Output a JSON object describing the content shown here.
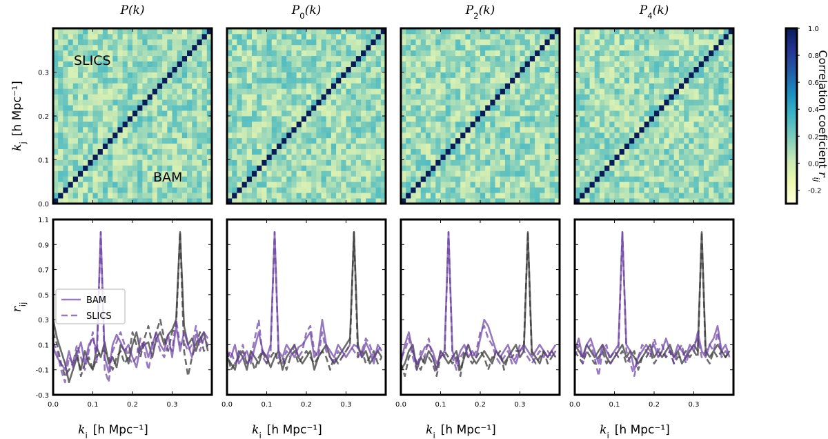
{
  "chart_data": {
    "type": "heatmap",
    "panel_titles": [
      {
        "main": "P",
        "sub": "",
        "suffix": "(k)"
      },
      {
        "main": "P",
        "sub": "0",
        "suffix": "(k)"
      },
      {
        "main": "P",
        "sub": "2",
        "suffix": "(k)"
      },
      {
        "main": "P",
        "sub": "4",
        "suffix": "(k)"
      }
    ],
    "heatmap": {
      "n_bins": 32,
      "k_range": [
        0.0,
        0.4
      ],
      "ylabel": {
        "var": "k",
        "sub": "j",
        "unit": "[h Mpc⁻¹]"
      },
      "y_ticks": [
        0.0,
        0.1,
        0.2,
        0.3
      ],
      "region_labels": {
        "upper": "SLICS",
        "lower": "BAM"
      },
      "diagonal_value": 1.0,
      "offdiag_mean": 0.12,
      "offdiag_spread": 0.1,
      "colormap": [
        "#ffffd9",
        "#edf8b1",
        "#c7e9b4",
        "#7fcdbb",
        "#41b6c4",
        "#1d91c0",
        "#225ea8",
        "#253494",
        "#081d58"
      ],
      "colorbar": {
        "range": [
          -0.3,
          1.0
        ],
        "ticks": [
          -0.2,
          0.0,
          0.2,
          0.4,
          0.6,
          0.8,
          1.0
        ],
        "label": "Correlation coeficient r",
        "label_sub": "ij"
      }
    },
    "lines": {
      "xlabel": {
        "var": "k",
        "sub": "i",
        "unit": "[h Mpc⁻¹]"
      },
      "ylabel": {
        "var": "r",
        "sub": "ij"
      },
      "x_ticks": [
        0.0,
        0.1,
        0.2,
        0.3
      ],
      "y_ticks": [
        -0.3,
        -0.1,
        0.1,
        0.3,
        0.5,
        0.7,
        0.9,
        1.1
      ],
      "xlim": [
        0.0,
        0.4
      ],
      "ylim": [
        -0.3,
        1.1
      ],
      "x": [
        0.0,
        0.01,
        0.02,
        0.03,
        0.04,
        0.05,
        0.06,
        0.07,
        0.08,
        0.09,
        0.1,
        0.11,
        0.12,
        0.13,
        0.14,
        0.15,
        0.16,
        0.17,
        0.18,
        0.19,
        0.2,
        0.21,
        0.22,
        0.23,
        0.24,
        0.25,
        0.26,
        0.27,
        0.28,
        0.29,
        0.3,
        0.31,
        0.32,
        0.33,
        0.34,
        0.35,
        0.36,
        0.37,
        0.38,
        0.39
      ],
      "legend": {
        "placement": "center-left",
        "entries": [
          "BAM",
          "SLICS"
        ]
      },
      "peak_purple_k": 0.12,
      "peak_gray_k": 0.32,
      "panels": [
        {
          "purple_bam": [
            0.08,
            0.0,
            -0.05,
            -0.1,
            0.05,
            -0.08,
            0.02,
            0.12,
            -0.05,
            0.1,
            0.15,
            0.05,
            1.0,
            0.0,
            -0.12,
            0.1,
            0.18,
            0.12,
            0.05,
            0.1,
            0.0,
            -0.08,
            0.08,
            0.12,
            0.0,
            0.1,
            0.2,
            0.1,
            0.05,
            0.18,
            0.0,
            0.25,
            0.05,
            0.2,
            0.1,
            0.0,
            0.18,
            0.12,
            0.2,
            0.15
          ],
          "purple_slics": [
            0.12,
            0.05,
            -0.1,
            -0.2,
            0.0,
            -0.05,
            0.1,
            0.0,
            -0.1,
            0.05,
            0.2,
            -0.05,
            1.0,
            -0.1,
            -0.2,
            0.05,
            0.12,
            0.2,
            0.1,
            0.0,
            -0.05,
            0.0,
            0.15,
            0.05,
            -0.1,
            0.05,
            0.15,
            0.05,
            0.0,
            0.1,
            0.05,
            0.3,
            0.1,
            0.12,
            0.05,
            0.1,
            0.25,
            0.05,
            0.15,
            0.1
          ],
          "gray_bam": [
            0.3,
            0.15,
            0.05,
            -0.05,
            -0.2,
            -0.1,
            0.0,
            -0.1,
            0.05,
            -0.05,
            -0.1,
            0.08,
            0.0,
            0.12,
            -0.05,
            0.0,
            -0.08,
            0.1,
            0.05,
            -0.05,
            0.1,
            0.2,
            0.05,
            0.1,
            0.12,
            0.0,
            0.15,
            0.2,
            0.1,
            0.18,
            0.22,
            0.3,
            1.0,
            0.25,
            0.1,
            0.15,
            0.05,
            0.15,
            0.2,
            0.05
          ],
          "gray_slics": [
            0.2,
            0.1,
            -0.05,
            -0.15,
            -0.1,
            -0.05,
            0.05,
            -0.15,
            -0.05,
            0.0,
            -0.1,
            0.0,
            0.05,
            0.05,
            0.0,
            -0.1,
            0.0,
            0.05,
            -0.05,
            0.0,
            0.2,
            0.1,
            0.0,
            0.15,
            0.25,
            0.1,
            0.2,
            0.3,
            0.15,
            0.05,
            0.2,
            0.25,
            1.0,
            0.05,
            -0.15,
            0.0,
            0.1,
            0.2,
            0.05,
            0.1
          ]
        },
        {
          "purple_bam": [
            0.05,
            0.0,
            0.1,
            -0.05,
            0.0,
            0.05,
            -0.05,
            0.08,
            0.2,
            0.05,
            0.0,
            0.1,
            1.0,
            0.05,
            0.0,
            0.1,
            0.05,
            0.0,
            0.08,
            0.1,
            0.15,
            0.2,
            0.0,
            0.05,
            0.3,
            0.1,
            0.05,
            0.0,
            0.1,
            0.05,
            0.0,
            0.05,
            0.1,
            0.08,
            0.0,
            0.12,
            0.05,
            -0.05,
            0.1,
            0.05
          ],
          "purple_slics": [
            0.0,
            0.05,
            -0.05,
            0.0,
            0.1,
            -0.05,
            0.0,
            0.15,
            0.3,
            0.0,
            -0.05,
            0.05,
            1.0,
            0.0,
            -0.05,
            0.05,
            0.0,
            0.1,
            0.0,
            0.05,
            0.2,
            0.25,
            0.05,
            0.0,
            0.2,
            0.05,
            0.0,
            -0.05,
            0.05,
            0.0,
            0.05,
            0.1,
            0.05,
            0.0,
            0.05,
            0.15,
            0.1,
            0.0,
            0.05,
            0.1
          ],
          "gray_bam": [
            0.0,
            -0.05,
            -0.1,
            0.05,
            0.0,
            -0.1,
            0.05,
            0.0,
            -0.05,
            0.05,
            0.0,
            -0.08,
            0.0,
            0.05,
            -0.1,
            0.0,
            0.05,
            0.1,
            0.0,
            -0.05,
            0.0,
            0.05,
            -0.1,
            0.0,
            0.05,
            0.1,
            0.0,
            -0.05,
            0.0,
            0.05,
            0.1,
            0.15,
            1.0,
            0.1,
            0.0,
            0.05,
            -0.05,
            0.0,
            0.05,
            0.0
          ],
          "gray_slics": [
            0.05,
            -0.1,
            -0.05,
            0.0,
            0.05,
            -0.05,
            0.0,
            -0.1,
            0.0,
            0.05,
            -0.05,
            0.0,
            0.05,
            -0.05,
            0.0,
            -0.1,
            0.0,
            0.05,
            -0.05,
            0.0,
            0.05,
            0.0,
            -0.05,
            0.0,
            0.05,
            0.0,
            -0.1,
            0.0,
            -0.05,
            0.0,
            0.05,
            0.1,
            1.0,
            0.0,
            0.05,
            -0.05,
            0.0,
            0.05,
            -0.05,
            0.0
          ]
        },
        {
          "purple_bam": [
            -0.05,
            0.1,
            0.2,
            0.05,
            -0.05,
            0.0,
            0.08,
            0.1,
            0.05,
            -0.05,
            0.0,
            0.05,
            1.0,
            0.05,
            -0.05,
            0.05,
            0.1,
            0.0,
            0.05,
            0.0,
            0.15,
            0.3,
            0.25,
            0.15,
            0.05,
            0.0,
            0.05,
            0.1,
            0.0,
            -0.05,
            0.05,
            0.1,
            0.05,
            0.0,
            0.05,
            0.1,
            0.05,
            0.0,
            0.05,
            0.1
          ],
          "purple_slics": [
            0.0,
            0.05,
            0.15,
            0.0,
            -0.1,
            0.05,
            0.0,
            0.15,
            0.0,
            -0.1,
            0.05,
            0.0,
            1.0,
            0.0,
            -0.1,
            0.0,
            0.05,
            0.1,
            0.0,
            0.05,
            0.2,
            0.25,
            0.15,
            0.1,
            0.0,
            -0.05,
            0.0,
            0.05,
            -0.05,
            0.0,
            0.1,
            0.05,
            0.0,
            -0.05,
            0.0,
            0.05,
            0.0,
            0.05,
            0.0,
            0.05
          ],
          "gray_bam": [
            -0.1,
            -0.05,
            0.05,
            0.1,
            -0.1,
            0.0,
            -0.05,
            0.05,
            0.0,
            -0.1,
            0.05,
            0.0,
            -0.05,
            0.0,
            0.05,
            -0.1,
            0.0,
            0.1,
            0.0,
            -0.05,
            0.0,
            0.05,
            0.0,
            -0.05,
            0.05,
            0.0,
            -0.05,
            0.0,
            0.05,
            0.1,
            0.0,
            0.05,
            1.0,
            0.05,
            0.0,
            -0.05,
            0.05,
            0.0,
            0.05,
            0.0
          ],
          "gray_slics": [
            -0.05,
            -0.15,
            0.0,
            0.05,
            -0.05,
            -0.1,
            0.0,
            0.0,
            -0.05,
            -0.15,
            0.0,
            0.05,
            0.0,
            -0.05,
            0.0,
            -0.15,
            0.05,
            0.0,
            -0.05,
            0.0,
            0.05,
            0.0,
            -0.1,
            0.0,
            0.0,
            0.05,
            -0.1,
            0.0,
            0.0,
            0.05,
            0.05,
            0.1,
            1.0,
            0.0,
            -0.05,
            0.0,
            0.05,
            -0.05,
            0.0,
            0.05
          ]
        },
        {
          "purple_bam": [
            0.05,
            0.15,
            0.0,
            0.1,
            0.15,
            0.05,
            -0.05,
            0.1,
            0.05,
            0.0,
            0.05,
            0.1,
            1.0,
            0.1,
            0.05,
            -0.1,
            0.0,
            0.05,
            0.1,
            0.05,
            0.1,
            0.0,
            0.05,
            0.15,
            0.05,
            0.0,
            0.1,
            0.05,
            0.0,
            0.1,
            0.05,
            0.2,
            0.05,
            0.0,
            0.1,
            0.15,
            0.25,
            0.05,
            0.1,
            0.0
          ],
          "purple_slics": [
            0.0,
            0.1,
            -0.05,
            0.05,
            0.1,
            0.0,
            -0.15,
            0.05,
            0.1,
            -0.05,
            0.0,
            0.05,
            1.0,
            0.05,
            -0.05,
            -0.15,
            0.0,
            0.1,
            0.05,
            0.0,
            0.15,
            0.05,
            0.1,
            0.0,
            0.05,
            -0.05,
            0.05,
            0.1,
            -0.05,
            0.05,
            0.1,
            0.15,
            0.0,
            0.05,
            0.1,
            0.05,
            0.2,
            0.0,
            0.05,
            0.0
          ],
          "gray_bam": [
            0.1,
            0.05,
            0.0,
            0.1,
            0.05,
            0.0,
            0.05,
            0.1,
            0.0,
            -0.05,
            0.0,
            0.05,
            0.1,
            0.0,
            0.05,
            0.0,
            -0.05,
            0.0,
            0.05,
            0.1,
            0.0,
            0.05,
            0.0,
            0.05,
            0.1,
            0.0,
            0.05,
            -0.05,
            0.0,
            0.05,
            0.1,
            0.05,
            1.0,
            0.05,
            0.0,
            0.05,
            0.1,
            0.05,
            0.0,
            0.05
          ],
          "gray_slics": [
            0.05,
            0.0,
            -0.05,
            0.05,
            0.0,
            -0.05,
            0.0,
            0.05,
            -0.05,
            0.0,
            0.05,
            0.0,
            0.05,
            -0.05,
            0.0,
            0.05,
            -0.1,
            0.0,
            0.0,
            0.05,
            -0.05,
            0.0,
            0.05,
            0.0,
            0.05,
            -0.05,
            0.0,
            0.0,
            0.05,
            0.0,
            0.05,
            0.0,
            1.0,
            0.0,
            -0.05,
            0.05,
            0.0,
            0.05,
            0.0,
            0.05
          ]
        }
      ]
    }
  },
  "colors": {
    "purple": "#6a3fa0",
    "gray": "#3a3a3a"
  }
}
